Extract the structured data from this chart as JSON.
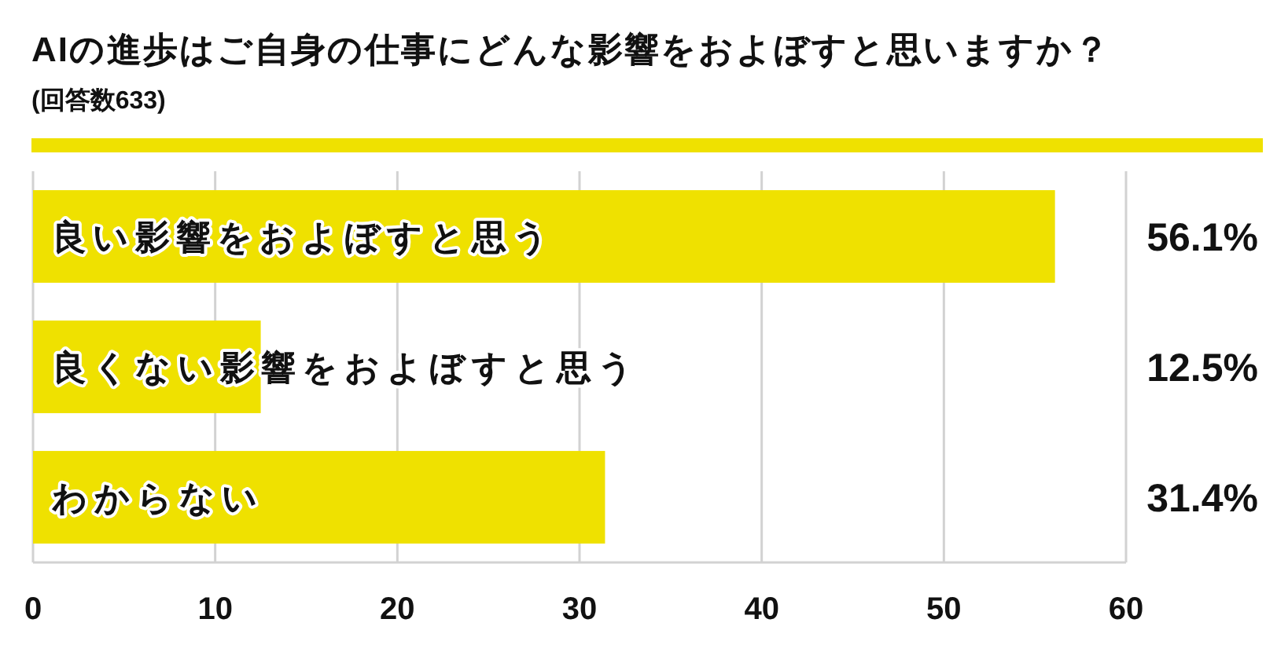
{
  "chart_data": {
    "type": "bar",
    "orientation": "horizontal",
    "title": "AIの進歩はご自身の仕事にどんな影響をおよぼすと思いますか？",
    "subtitle": "(回答数633)",
    "categories": [
      "良い影響をおよぼすと思う",
      "良くない影響をおよぼすと思う",
      "わからない"
    ],
    "values": [
      56.1,
      12.5,
      31.4
    ],
    "color": "#efe100",
    "value_labels": [
      "56.1%",
      "12.5%",
      "31.4%"
    ],
    "xlim": [
      0,
      60
    ],
    "xticks": [
      0,
      10,
      20,
      30,
      40,
      50,
      60
    ],
    "grid": "x"
  }
}
